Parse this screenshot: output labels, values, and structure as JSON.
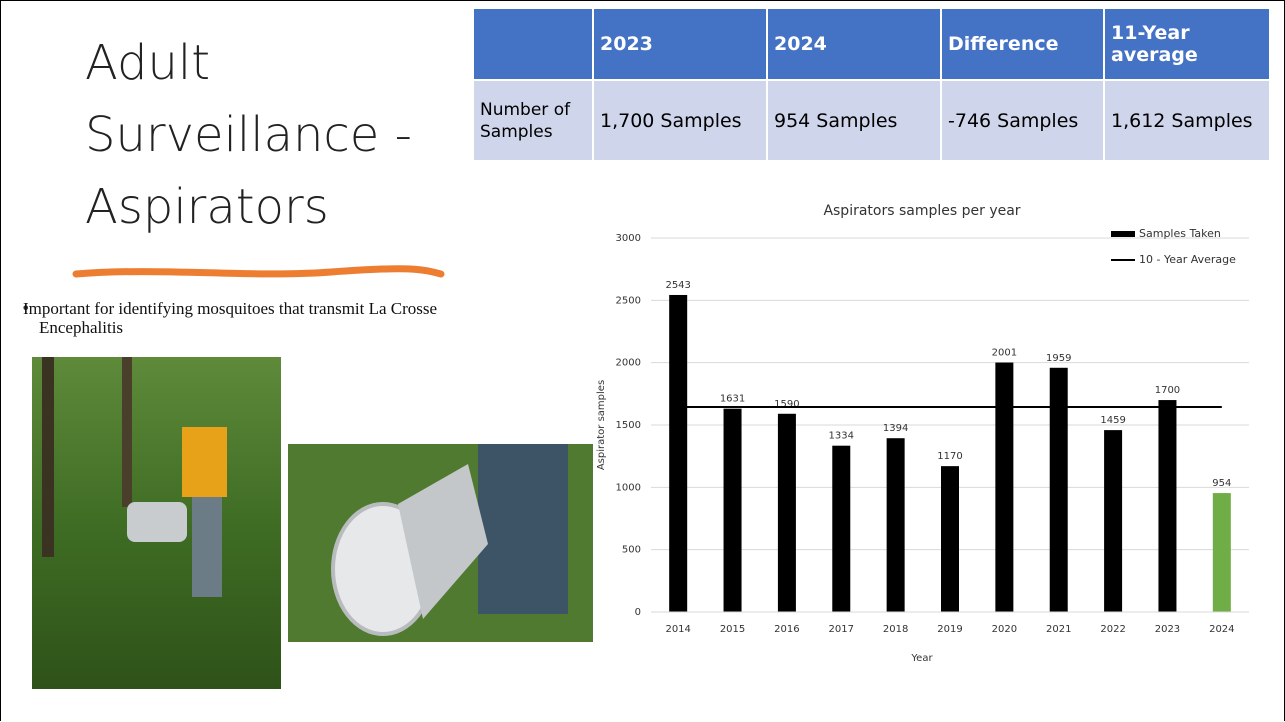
{
  "slide": {
    "title": "Adult Surveillance - Aspirators",
    "bullet": "Important for identifying mosquitoes that transmit La Crosse Encephalitis"
  },
  "table": {
    "header": [
      "",
      "2023",
      "2024",
      "Difference",
      "11-Year average"
    ],
    "rows": [
      [
        "Number of Samples",
        "1,700 Samples",
        "954 Samples",
        "-746 Samples",
        "1,612 Samples"
      ]
    ]
  },
  "chart_data": {
    "type": "bar",
    "title": "Aspirators samples per year",
    "x_label": "Year",
    "y_label": "Aspirator samples",
    "categories": [
      "2014",
      "2015",
      "2016",
      "2017",
      "2018",
      "2019",
      "2020",
      "2021",
      "2022",
      "2023",
      "2024"
    ],
    "series": [
      {
        "name": "Samples Taken",
        "color": "#000000",
        "colors": [
          "#000000",
          "#000000",
          "#000000",
          "#000000",
          "#000000",
          "#000000",
          "#000000",
          "#000000",
          "#000000",
          "#000000",
          "#70ad47"
        ],
        "values": [
          2543,
          1631,
          1590,
          1334,
          1394,
          1170,
          2001,
          1959,
          1459,
          1700,
          954
        ]
      },
      {
        "name": "10 - Year Average",
        "color": "#000000",
        "type": "line",
        "values": [
          1644,
          1644,
          1644,
          1644,
          1644,
          1644,
          1644,
          1644,
          1644,
          1644,
          1644
        ]
      }
    ],
    "ylim": [
      0,
      3000
    ],
    "yticks": [
      0,
      500,
      1000,
      1500,
      2000,
      2500,
      3000
    ],
    "grid": true,
    "legend": "top-right"
  }
}
